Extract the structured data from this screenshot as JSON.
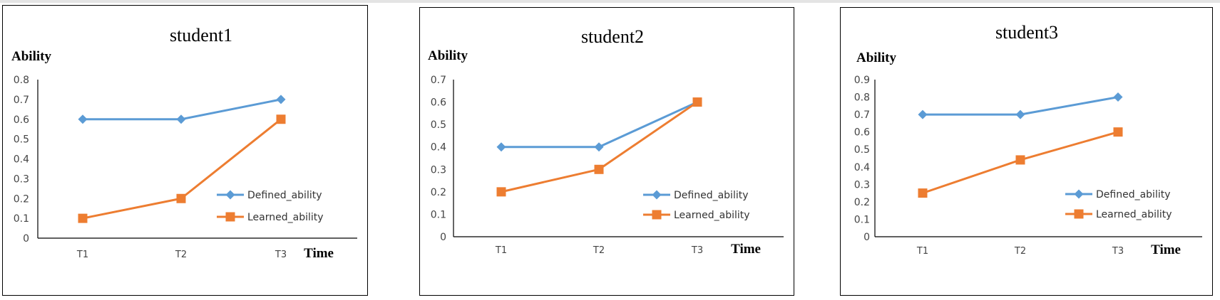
{
  "chart_data": [
    {
      "type": "line",
      "title": "student1",
      "ylabel": "Ability",
      "xlabel": "Time",
      "categories": [
        "T1",
        "T2",
        "T3"
      ],
      "ylim": [
        0,
        0.8
      ],
      "yticks": [
        "0",
        "0.1",
        "0.2",
        "0.3",
        "0.4",
        "0.5",
        "0.6",
        "0.7",
        "0.8"
      ],
      "legend_position": "bottom-right",
      "series": [
        {
          "name": "Defined_ability",
          "values": [
            0.6,
            0.6,
            0.7
          ],
          "color": "#5b9bd5",
          "marker": "diamond"
        },
        {
          "name": "Learned_ability",
          "values": [
            0.1,
            0.2,
            0.6
          ],
          "color": "#ed7d31",
          "marker": "square"
        }
      ]
    },
    {
      "type": "line",
      "title": "student2",
      "ylabel": "Ability",
      "xlabel": "Time",
      "categories": [
        "T1",
        "T2",
        "T3"
      ],
      "ylim": [
        0,
        0.7
      ],
      "yticks": [
        "0",
        "0.1",
        "0.2",
        "0.3",
        "0.4",
        "0.5",
        "0.6",
        "0.7"
      ],
      "legend_position": "bottom-right",
      "series": [
        {
          "name": "Defined_ability",
          "values": [
            0.4,
            0.4,
            0.6
          ],
          "color": "#5b9bd5",
          "marker": "diamond"
        },
        {
          "name": "Learned_ability",
          "values": [
            0.2,
            0.3,
            0.6
          ],
          "color": "#ed7d31",
          "marker": "square"
        }
      ]
    },
    {
      "type": "line",
      "title": "student3",
      "ylabel": "Ability",
      "xlabel": "Time",
      "categories": [
        "T1",
        "T2",
        "T3"
      ],
      "ylim": [
        0,
        0.9
      ],
      "yticks": [
        "0",
        "0.1",
        "0.2",
        "0.3",
        "0.4",
        "0.5",
        "0.6",
        "0.7",
        "0.8",
        "0.9"
      ],
      "legend_position": "bottom-right",
      "series": [
        {
          "name": "Defined_ability",
          "values": [
            0.7,
            0.7,
            0.8
          ],
          "color": "#5b9bd5",
          "marker": "diamond"
        },
        {
          "name": "Learned_ability",
          "values": [
            0.25,
            0.44,
            0.6
          ],
          "color": "#ed7d31",
          "marker": "square"
        }
      ]
    }
  ]
}
